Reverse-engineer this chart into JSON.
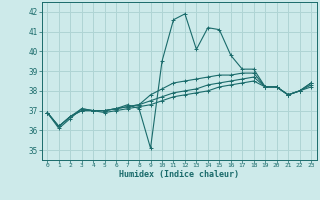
{
  "xlabel": "Humidex (Indice chaleur)",
  "ylabel": "",
  "bg_color": "#cdeaea",
  "grid_color": "#afd4d4",
  "line_color": "#1a6b6b",
  "xlim": [
    -0.5,
    23.5
  ],
  "ylim": [
    34.5,
    42.5
  ],
  "yticks": [
    35,
    36,
    37,
    38,
    39,
    40,
    41,
    42
  ],
  "xticks": [
    0,
    1,
    2,
    3,
    4,
    5,
    6,
    7,
    8,
    9,
    10,
    11,
    12,
    13,
    14,
    15,
    16,
    17,
    18,
    19,
    20,
    21,
    22,
    23
  ],
  "lines": [
    [
      36.9,
      36.1,
      36.6,
      37.1,
      37.0,
      37.0,
      37.1,
      37.3,
      37.1,
      35.1,
      39.5,
      41.6,
      41.9,
      40.1,
      41.2,
      41.1,
      39.8,
      39.1,
      39.1,
      38.2,
      38.2,
      37.8,
      38.0,
      38.4
    ],
    [
      36.9,
      36.2,
      36.7,
      37.1,
      37.0,
      37.0,
      37.1,
      37.2,
      37.3,
      37.8,
      38.1,
      38.4,
      38.5,
      38.6,
      38.7,
      38.8,
      38.8,
      38.9,
      38.9,
      38.2,
      38.2,
      37.8,
      38.0,
      38.4
    ],
    [
      36.9,
      36.2,
      36.7,
      37.0,
      37.0,
      37.0,
      37.1,
      37.2,
      37.3,
      37.5,
      37.7,
      37.9,
      38.0,
      38.1,
      38.3,
      38.4,
      38.5,
      38.6,
      38.7,
      38.2,
      38.2,
      37.8,
      38.0,
      38.3
    ],
    [
      36.9,
      36.2,
      36.7,
      37.0,
      37.0,
      36.9,
      37.0,
      37.1,
      37.2,
      37.3,
      37.5,
      37.7,
      37.8,
      37.9,
      38.0,
      38.2,
      38.3,
      38.4,
      38.5,
      38.2,
      38.2,
      37.8,
      38.0,
      38.2
    ]
  ]
}
